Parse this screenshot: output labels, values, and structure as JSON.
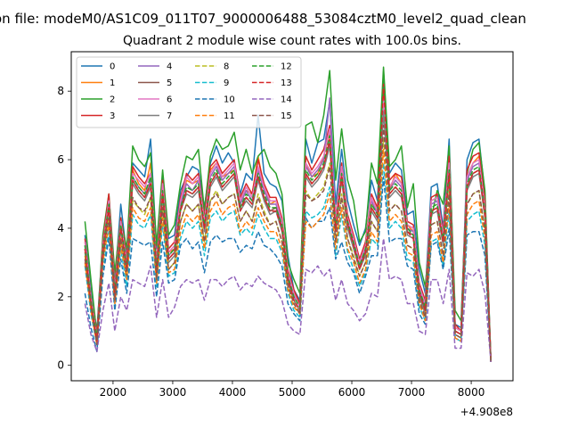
{
  "figure_title": "on file: modeM0/AS1C09_011T07_9000006488_53084cztM0_level2_quad_clean",
  "chart_data": {
    "type": "line",
    "title": "Quadrant 2 module wise count rates with 100.0s bins.",
    "xlabel": "",
    "ylabel": "",
    "x_offset_label": "+4.908e8",
    "xlim": [
      1300,
      8700
    ],
    "ylim": [
      -0.45,
      9.15
    ],
    "xticks": [
      2000,
      3000,
      4000,
      5000,
      6000,
      7000,
      8000
    ],
    "yticks": [
      0,
      2,
      4,
      6,
      8
    ],
    "grid": false,
    "legend_position": "upper-left",
    "legend_columns": 4,
    "x": [
      1530,
      1630,
      1730,
      1830,
      1930,
      2030,
      2130,
      2230,
      2330,
      2430,
      2530,
      2630,
      2730,
      2830,
      2930,
      3030,
      3130,
      3230,
      3330,
      3430,
      3530,
      3630,
      3730,
      3830,
      3930,
      4030,
      4130,
      4230,
      4330,
      4430,
      4530,
      4630,
      4730,
      4830,
      4930,
      5030,
      5130,
      5230,
      5330,
      5430,
      5530,
      5630,
      5730,
      5830,
      5930,
      6030,
      6130,
      6230,
      6330,
      6430,
      6530,
      6630,
      6730,
      6830,
      6930,
      7030,
      7130,
      7230,
      7330,
      7430,
      7530,
      7630,
      7730,
      7830,
      7930,
      8030,
      8130,
      8230,
      8330
    ],
    "series": [
      {
        "name": "0",
        "color": "#1f77b4",
        "dash": "solid",
        "values": [
          3.8,
          2.2,
          1.0,
          3.7,
          4.8,
          2.4,
          4.7,
          3.2,
          5.9,
          5.7,
          5.5,
          6.6,
          3.4,
          5.5,
          3.7,
          3.8,
          5.1,
          5.5,
          5.8,
          5.7,
          4.6,
          5.9,
          6.4,
          5.9,
          6.2,
          5.9,
          5.0,
          5.6,
          5.4,
          7.3,
          5.6,
          5.3,
          5.2,
          4.8,
          3.2,
          2.2,
          1.9,
          6.6,
          5.9,
          6.5,
          6.6,
          7.7,
          4.7,
          6.3,
          4.8,
          4.1,
          3.5,
          4.0,
          5.4,
          4.8,
          8.4,
          5.6,
          5.9,
          5.7,
          4.4,
          4.5,
          2.8,
          2.1,
          5.2,
          5.3,
          4.0,
          6.6,
          1.2,
          1.1,
          6.0,
          6.5,
          6.6,
          5.0,
          0.1
        ]
      },
      {
        "name": "1",
        "color": "#ff7f0e",
        "dash": "solid",
        "values": [
          3.6,
          2.0,
          0.7,
          3.5,
          4.9,
          2.2,
          4.3,
          2.8,
          5.7,
          5.3,
          5.1,
          5.9,
          2.9,
          5.3,
          3.3,
          3.4,
          4.7,
          5.4,
          5.3,
          5.4,
          4.1,
          5.7,
          5.9,
          5.5,
          5.6,
          5.7,
          4.7,
          5.1,
          5.0,
          6.1,
          5.2,
          4.7,
          4.8,
          4.1,
          2.6,
          2.1,
          1.8,
          5.9,
          5.5,
          5.6,
          6.1,
          6.8,
          4.2,
          5.8,
          4.3,
          3.6,
          3.0,
          3.6,
          4.7,
          4.5,
          7.9,
          5.1,
          5.6,
          5.3,
          4.1,
          3.9,
          2.3,
          1.6,
          4.8,
          4.9,
          3.8,
          6.0,
          1.1,
          1.0,
          5.5,
          5.9,
          6.1,
          4.6,
          0.1
        ]
      },
      {
        "name": "2",
        "color": "#2ca02c",
        "dash": "solid",
        "values": [
          4.2,
          2.5,
          0.9,
          3.8,
          5.0,
          2.7,
          4.3,
          3.4,
          6.4,
          6.0,
          5.8,
          6.2,
          3.5,
          5.7,
          3.8,
          4.1,
          5.3,
          6.1,
          6.0,
          6.3,
          4.5,
          6.1,
          6.6,
          6.3,
          6.4,
          6.8,
          5.7,
          6.3,
          5.6,
          6.1,
          6.3,
          5.8,
          5.6,
          5.0,
          3.0,
          2.5,
          2.1,
          7.0,
          7.1,
          6.5,
          7.3,
          8.6,
          5.4,
          6.9,
          5.4,
          4.8,
          3.6,
          3.9,
          5.9,
          5.3,
          8.7,
          5.8,
          6.0,
          6.4,
          4.6,
          5.3,
          3.0,
          2.3,
          4.3,
          5.1,
          4.7,
          6.4,
          1.6,
          1.3,
          5.6,
          6.3,
          6.5,
          5.1,
          0.1
        ]
      },
      {
        "name": "3",
        "color": "#d62728",
        "dash": "solid",
        "values": [
          3.7,
          2.0,
          0.9,
          3.6,
          5.0,
          2.3,
          4.3,
          3.1,
          5.8,
          5.5,
          5.3,
          5.6,
          3.0,
          5.4,
          3.4,
          3.6,
          4.9,
          5.6,
          5.4,
          5.6,
          4.3,
          5.8,
          6.0,
          5.6,
          5.8,
          6.0,
          4.9,
          5.3,
          5.0,
          6.0,
          5.3,
          4.9,
          4.9,
          4.3,
          2.8,
          2.2,
          1.8,
          6.1,
          5.7,
          6.0,
          6.3,
          7.0,
          4.3,
          5.9,
          4.4,
          3.8,
          3.1,
          3.6,
          5.0,
          4.6,
          8.0,
          5.4,
          5.6,
          5.5,
          4.2,
          4.1,
          2.4,
          1.9,
          4.9,
          5.0,
          3.9,
          6.1,
          1.2,
          1.0,
          5.7,
          6.1,
          6.2,
          4.8,
          0.1
        ]
      },
      {
        "name": "4",
        "color": "#9467bd",
        "dash": "solid",
        "values": [
          3.5,
          1.9,
          0.8,
          3.4,
          4.8,
          2.1,
          4.2,
          2.9,
          5.5,
          5.2,
          5.0,
          5.4,
          2.8,
          5.2,
          3.2,
          3.4,
          4.7,
          5.3,
          5.1,
          5.4,
          4.1,
          5.5,
          5.8,
          5.4,
          5.6,
          5.8,
          4.7,
          5.1,
          4.8,
          5.7,
          5.1,
          4.7,
          4.7,
          4.1,
          2.6,
          2.0,
          1.7,
          5.8,
          5.5,
          5.7,
          6.0,
          7.8,
          4.1,
          5.7,
          4.2,
          3.6,
          2.9,
          3.4,
          4.8,
          4.4,
          7.7,
          5.1,
          5.4,
          5.2,
          4.0,
          3.9,
          2.2,
          1.7,
          4.7,
          4.8,
          3.7,
          5.8,
          1.0,
          0.9,
          5.4,
          5.8,
          5.9,
          4.5,
          0.1
        ]
      },
      {
        "name": "5",
        "color": "#8c564b",
        "dash": "solid",
        "values": [
          3.4,
          1.8,
          0.7,
          3.3,
          4.7,
          2.0,
          4.0,
          2.8,
          5.4,
          5.1,
          4.9,
          5.3,
          2.7,
          5.0,
          3.1,
          3.3,
          4.6,
          5.1,
          5.0,
          5.2,
          4.0,
          5.3,
          5.6,
          5.2,
          5.4,
          5.6,
          4.6,
          4.9,
          4.7,
          5.5,
          4.9,
          4.5,
          4.6,
          4.0,
          2.5,
          1.9,
          1.6,
          5.6,
          5.3,
          5.5,
          5.8,
          6.5,
          4.0,
          5.5,
          4.1,
          3.5,
          2.8,
          3.3,
          4.6,
          4.3,
          7.5,
          5.0,
          5.2,
          5.0,
          3.9,
          3.8,
          2.1,
          1.6,
          4.5,
          4.6,
          3.6,
          5.6,
          1.0,
          0.9,
          5.2,
          5.6,
          5.7,
          4.4,
          0.1
        ]
      },
      {
        "name": "6",
        "color": "#e377c2",
        "dash": "solid",
        "values": [
          3.6,
          2.0,
          0.8,
          3.5,
          4.8,
          2.2,
          4.2,
          3.0,
          5.6,
          5.4,
          5.2,
          5.6,
          2.9,
          5.3,
          3.3,
          3.5,
          4.8,
          5.5,
          5.3,
          5.5,
          4.2,
          5.6,
          5.9,
          5.5,
          5.7,
          5.9,
          4.8,
          5.2,
          4.9,
          5.8,
          5.2,
          4.8,
          4.8,
          4.2,
          2.7,
          2.1,
          1.7,
          5.9,
          5.6,
          5.8,
          6.1,
          6.9,
          4.2,
          5.8,
          4.3,
          3.7,
          3.0,
          3.5,
          4.9,
          4.5,
          7.8,
          5.2,
          5.5,
          5.3,
          4.1,
          4.0,
          2.3,
          1.8,
          4.8,
          4.9,
          3.8,
          5.9,
          1.1,
          1.0,
          5.5,
          5.9,
          6.0,
          4.6,
          0.1
        ]
      },
      {
        "name": "7",
        "color": "#7f7f7f",
        "dash": "solid",
        "values": [
          3.3,
          1.8,
          0.7,
          3.2,
          4.6,
          2.0,
          4.0,
          2.7,
          5.3,
          5.0,
          4.8,
          5.2,
          2.7,
          4.9,
          3.0,
          3.2,
          4.5,
          5.0,
          4.9,
          5.1,
          3.9,
          5.2,
          5.5,
          5.1,
          5.3,
          5.5,
          4.5,
          4.8,
          4.6,
          5.4,
          4.8,
          4.4,
          4.5,
          3.9,
          2.4,
          1.9,
          1.6,
          5.5,
          5.2,
          5.4,
          5.7,
          6.4,
          3.9,
          5.4,
          4.0,
          3.4,
          2.8,
          3.2,
          4.5,
          4.2,
          7.4,
          4.9,
          5.1,
          4.9,
          3.8,
          3.7,
          2.0,
          1.5,
          4.4,
          4.5,
          3.5,
          5.5,
          0.9,
          0.8,
          5.1,
          5.5,
          5.6,
          4.3,
          0.1
        ]
      },
      {
        "name": "8",
        "color": "#bcbd22",
        "dash": "dashed",
        "values": [
          3.2,
          1.7,
          0.6,
          3.1,
          4.3,
          1.9,
          3.7,
          2.6,
          4.8,
          4.6,
          4.4,
          4.9,
          2.5,
          4.6,
          2.8,
          3.0,
          4.2,
          4.7,
          4.5,
          4.7,
          3.6,
          4.8,
          5.1,
          4.7,
          4.9,
          5.0,
          4.2,
          4.5,
          4.2,
          5.0,
          4.5,
          4.1,
          4.2,
          3.6,
          2.3,
          1.8,
          1.5,
          5.1,
          4.8,
          5.0,
          5.2,
          5.9,
          3.6,
          5.0,
          3.7,
          3.2,
          2.6,
          3.0,
          4.2,
          3.9,
          6.6,
          4.5,
          4.7,
          4.5,
          3.5,
          3.4,
          1.9,
          1.4,
          4.1,
          4.2,
          3.2,
          5.1,
          0.9,
          0.8,
          4.7,
          5.0,
          5.1,
          3.9,
          0.1
        ]
      },
      {
        "name": "9",
        "color": "#17becf",
        "dash": "dashed",
        "values": [
          2.9,
          1.5,
          0.6,
          2.8,
          3.9,
          1.7,
          3.4,
          2.3,
          4.4,
          4.1,
          4.0,
          4.4,
          2.3,
          4.1,
          2.6,
          2.7,
          3.7,
          4.2,
          4.0,
          4.2,
          3.2,
          4.3,
          4.5,
          4.2,
          4.4,
          4.5,
          3.8,
          4.0,
          3.8,
          4.4,
          4.0,
          3.7,
          3.7,
          3.3,
          2.1,
          1.6,
          1.4,
          4.5,
          4.3,
          4.4,
          4.6,
          5.2,
          3.2,
          4.4,
          3.3,
          2.8,
          2.3,
          2.7,
          3.7,
          3.5,
          5.9,
          4.0,
          4.2,
          4.0,
          3.1,
          3.0,
          1.7,
          1.3,
          3.6,
          3.7,
          2.9,
          4.5,
          0.8,
          0.7,
          4.2,
          4.4,
          4.5,
          3.5,
          0.1
        ]
      },
      {
        "name": "10",
        "color": "#1f77b4",
        "dash": "dashed",
        "values": [
          2.1,
          1.1,
          0.4,
          2.6,
          3.7,
          1.6,
          3.1,
          2.1,
          3.7,
          3.6,
          3.5,
          3.6,
          2.0,
          3.6,
          2.4,
          2.5,
          3.5,
          3.7,
          3.4,
          3.6,
          2.7,
          3.6,
          3.8,
          3.6,
          3.7,
          3.7,
          3.3,
          3.5,
          3.4,
          3.9,
          3.5,
          3.4,
          3.2,
          2.9,
          1.8,
          1.5,
          1.3,
          4.3,
          4.0,
          4.2,
          4.2,
          4.6,
          3.1,
          3.6,
          3.0,
          2.7,
          2.1,
          2.6,
          3.2,
          3.2,
          5.5,
          3.6,
          3.7,
          3.7,
          2.9,
          2.8,
          1.5,
          1.2,
          3.5,
          3.6,
          2.8,
          4.0,
          0.8,
          0.7,
          3.8,
          3.9,
          3.9,
          3.2,
          0.1
        ]
      },
      {
        "name": "11",
        "color": "#ff7f0e",
        "dash": "dashed",
        "values": [
          3.0,
          1.6,
          0.6,
          3.0,
          4.1,
          1.8,
          3.5,
          2.5,
          4.6,
          4.3,
          4.2,
          4.6,
          2.4,
          4.3,
          2.7,
          2.8,
          3.9,
          4.4,
          4.2,
          4.4,
          3.4,
          4.5,
          4.8,
          4.4,
          4.6,
          4.7,
          3.9,
          4.2,
          4.0,
          4.6,
          4.2,
          3.9,
          3.9,
          3.4,
          2.2,
          1.7,
          1.5,
          4.2,
          4.0,
          4.2,
          4.4,
          5.0,
          3.4,
          4.6,
          3.4,
          3.0,
          2.4,
          2.8,
          3.9,
          3.6,
          6.3,
          4.2,
          4.4,
          4.2,
          3.3,
          3.2,
          1.8,
          1.3,
          3.8,
          3.9,
          3.0,
          4.7,
          0.8,
          0.7,
          4.4,
          4.7,
          4.8,
          3.7,
          0.1
        ]
      },
      {
        "name": "12",
        "color": "#2ca02c",
        "dash": "dashed",
        "values": [
          3.5,
          1.9,
          0.8,
          3.4,
          4.7,
          2.1,
          4.1,
          2.9,
          5.5,
          5.2,
          5.0,
          5.5,
          2.8,
          5.1,
          3.2,
          3.4,
          4.6,
          5.2,
          5.1,
          5.3,
          4.1,
          5.4,
          5.7,
          5.3,
          5.5,
          5.7,
          4.6,
          5.0,
          4.8,
          5.6,
          5.0,
          4.6,
          4.6,
          4.1,
          2.6,
          2.0,
          1.7,
          5.7,
          5.4,
          5.6,
          5.9,
          6.7,
          4.0,
          5.6,
          4.2,
          3.6,
          2.9,
          3.4,
          4.7,
          4.4,
          8.6,
          5.1,
          5.3,
          5.1,
          4.0,
          3.8,
          2.2,
          1.7,
          4.6,
          4.7,
          3.7,
          5.7,
          1.0,
          0.9,
          5.3,
          5.7,
          5.8,
          4.5,
          0.1
        ]
      },
      {
        "name": "13",
        "color": "#d62728",
        "dash": "dashed",
        "values": [
          3.4,
          1.8,
          0.7,
          3.3,
          4.6,
          2.0,
          4.0,
          2.8,
          5.4,
          5.1,
          4.9,
          5.3,
          2.7,
          5.0,
          3.1,
          3.3,
          4.5,
          5.1,
          5.0,
          5.2,
          4.0,
          5.3,
          5.6,
          5.2,
          5.4,
          5.6,
          4.5,
          4.9,
          4.7,
          5.5,
          4.9,
          4.5,
          4.5,
          4.0,
          2.5,
          1.9,
          1.6,
          5.6,
          5.3,
          5.5,
          5.8,
          6.6,
          3.9,
          5.5,
          4.1,
          3.5,
          2.8,
          3.3,
          4.6,
          4.3,
          8.2,
          5.0,
          5.2,
          5.0,
          3.9,
          3.7,
          2.1,
          1.6,
          4.5,
          4.6,
          3.6,
          5.6,
          1.0,
          0.9,
          5.2,
          5.6,
          5.7,
          4.4,
          0.1
        ]
      },
      {
        "name": "14",
        "color": "#9467bd",
        "dash": "dashed",
        "values": [
          1.8,
          0.9,
          0.4,
          1.6,
          2.4,
          1.0,
          2.0,
          1.6,
          2.5,
          2.4,
          2.3,
          2.9,
          1.4,
          2.5,
          1.4,
          1.7,
          2.3,
          2.5,
          2.4,
          2.5,
          1.9,
          2.5,
          2.5,
          2.3,
          2.5,
          2.6,
          2.2,
          2.4,
          2.3,
          2.6,
          2.4,
          2.3,
          2.2,
          1.9,
          1.2,
          1.0,
          0.9,
          2.8,
          2.7,
          2.9,
          2.6,
          2.8,
          1.9,
          2.5,
          1.8,
          1.6,
          1.3,
          1.5,
          2.1,
          2.0,
          3.7,
          2.5,
          2.6,
          2.5,
          1.8,
          1.8,
          1.0,
          0.9,
          2.5,
          2.5,
          1.8,
          2.8,
          0.5,
          0.5,
          2.7,
          2.6,
          2.8,
          2.1,
          0.1
        ]
      },
      {
        "name": "15",
        "color": "#8c564b",
        "dash": "dashed",
        "values": [
          3.1,
          1.7,
          0.6,
          3.1,
          4.3,
          1.9,
          3.7,
          2.6,
          4.9,
          4.6,
          4.5,
          4.9,
          2.5,
          4.6,
          2.8,
          3.0,
          4.2,
          4.7,
          4.5,
          4.7,
          3.6,
          4.8,
          5.0,
          4.7,
          4.9,
          5.0,
          4.2,
          4.5,
          4.2,
          4.9,
          4.4,
          4.1,
          4.2,
          3.6,
          2.3,
          1.8,
          1.5,
          5.0,
          4.8,
          4.9,
          5.1,
          5.8,
          3.6,
          4.9,
          3.7,
          3.1,
          2.6,
          3.0,
          4.2,
          3.9,
          7.0,
          4.5,
          4.7,
          4.5,
          3.5,
          3.4,
          1.9,
          1.4,
          4.1,
          4.2,
          3.2,
          5.0,
          0.9,
          0.8,
          4.7,
          5.0,
          5.1,
          3.9,
          0.1
        ]
      }
    ]
  }
}
